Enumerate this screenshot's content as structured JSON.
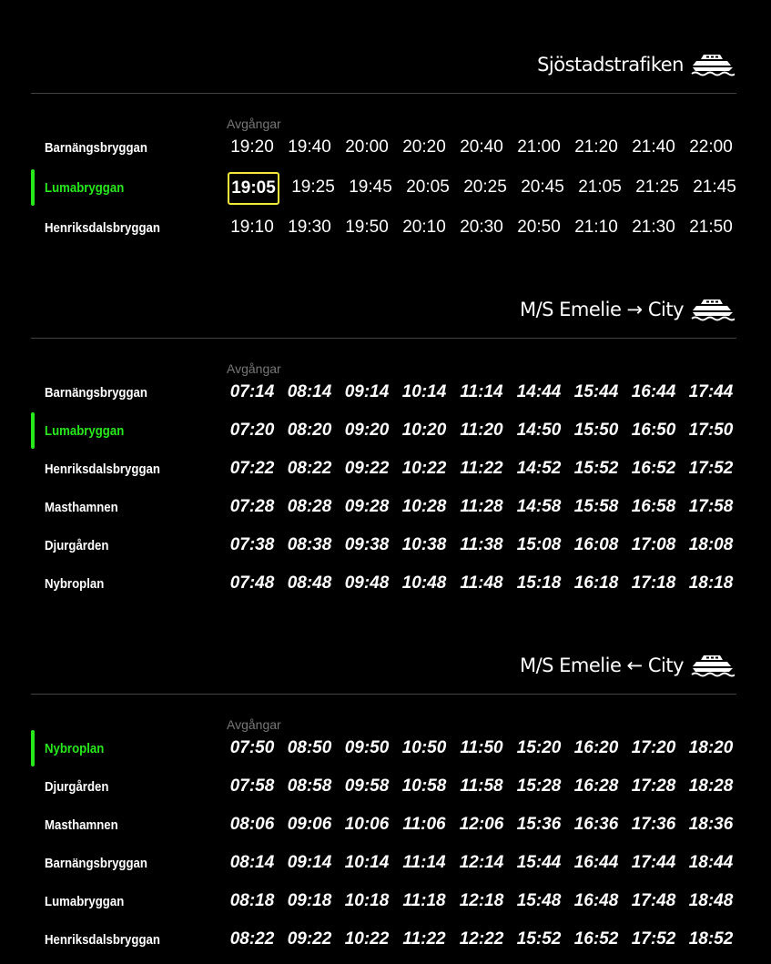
{
  "sections": [
    {
      "title": "Sjöstadstrafiken",
      "departures_label": "Avgångar",
      "rows": [
        {
          "stop": "Barnängsbryggan",
          "times": [
            "19:20",
            "19:40",
            "20:00",
            "20:20",
            "20:40",
            "21:00",
            "21:20",
            "21:40",
            "22:00"
          ]
        },
        {
          "stop": "Lumabryggan",
          "highlighted": true,
          "times": [
            "19:05",
            "19:25",
            "19:45",
            "20:05",
            "20:25",
            "20:45",
            "21:05",
            "21:25",
            "21:45"
          ],
          "next_departure": "19:05"
        },
        {
          "stop": "Henriksdalsbryggan",
          "times": [
            "19:10",
            "19:30",
            "19:50",
            "20:10",
            "20:30",
            "20:50",
            "21:10",
            "21:30",
            "21:50"
          ]
        }
      ]
    },
    {
      "title": "M/S Emelie → City",
      "departures_label": "Avgångar",
      "rows": [
        {
          "stop": "Barnängsbryggan",
          "times": [
            "07:14",
            "08:14",
            "09:14",
            "10:14",
            "11:14",
            "14:44",
            "15:44",
            "16:44",
            "17:44"
          ]
        },
        {
          "stop": "Lumabryggan",
          "highlighted": true,
          "times": [
            "07:20",
            "08:20",
            "09:20",
            "10:20",
            "11:20",
            "14:50",
            "15:50",
            "16:50",
            "17:50"
          ]
        },
        {
          "stop": "Henriksdalsbryggan",
          "times": [
            "07:22",
            "08:22",
            "09:22",
            "10:22",
            "11:22",
            "14:52",
            "15:52",
            "16:52",
            "17:52"
          ]
        },
        {
          "stop": "Masthamnen",
          "times": [
            "07:28",
            "08:28",
            "09:28",
            "10:28",
            "11:28",
            "14:58",
            "15:58",
            "16:58",
            "17:58"
          ]
        },
        {
          "stop": "Djurgården",
          "times": [
            "07:38",
            "08:38",
            "09:38",
            "10:38",
            "11:38",
            "15:08",
            "16:08",
            "17:08",
            "18:08"
          ]
        },
        {
          "stop": "Nybroplan",
          "times": [
            "07:48",
            "08:48",
            "09:48",
            "10:48",
            "11:48",
            "15:18",
            "16:18",
            "17:18",
            "18:18"
          ]
        }
      ]
    },
    {
      "title": "M/S Emelie ← City",
      "departures_label": "Avgångar",
      "rows": [
        {
          "stop": "Nybroplan",
          "highlighted": true,
          "times": [
            "07:50",
            "08:50",
            "09:50",
            "10:50",
            "11:50",
            "15:20",
            "16:20",
            "17:20",
            "18:20"
          ]
        },
        {
          "stop": "Djurgården",
          "times": [
            "07:58",
            "08:58",
            "09:58",
            "10:58",
            "11:58",
            "15:28",
            "16:28",
            "17:28",
            "18:28"
          ]
        },
        {
          "stop": "Masthamnen",
          "times": [
            "08:06",
            "09:06",
            "10:06",
            "11:06",
            "12:06",
            "15:36",
            "16:36",
            "17:36",
            "18:36"
          ]
        },
        {
          "stop": "Barnängsbryggan",
          "times": [
            "08:14",
            "09:14",
            "10:14",
            "11:14",
            "12:14",
            "15:44",
            "16:44",
            "17:44",
            "18:44"
          ]
        },
        {
          "stop": "Lumabryggan",
          "times": [
            "08:18",
            "09:18",
            "10:18",
            "11:18",
            "12:18",
            "15:48",
            "16:48",
            "17:48",
            "18:48"
          ]
        },
        {
          "stop": "Henriksdalsbryggan",
          "times": [
            "08:22",
            "09:22",
            "10:22",
            "11:22",
            "12:22",
            "15:52",
            "16:52",
            "17:52",
            "18:52"
          ]
        }
      ]
    }
  ],
  "icons": {
    "section": "ferry-icon"
  },
  "colors": {
    "highlight": "#27e81b",
    "next_box": "#f3e73a",
    "divider": "#444444",
    "label": "#777777"
  }
}
